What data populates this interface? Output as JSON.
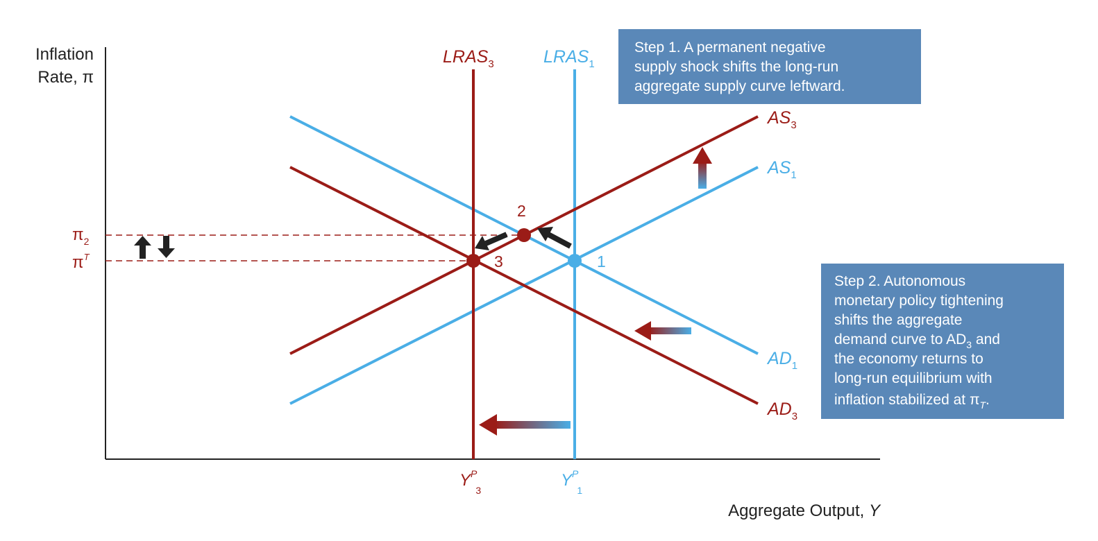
{
  "colors": {
    "blue": "#4aaee6",
    "red": "#9b1c17",
    "box": "#5a88b8",
    "axis": "#222222",
    "arrow": "#222222"
  },
  "axes": {
    "y_label_line1": "Inflation",
    "y_label_line2_text": "Rate, ",
    "y_label_line2_symbol": "π",
    "x_label_text": "Aggregate Output, ",
    "x_label_symbol": "Y"
  },
  "curves": {
    "lras3": {
      "base": "LRAS",
      "sub": "3"
    },
    "lras1": {
      "base": "LRAS",
      "sub": "1"
    },
    "as3": {
      "base": "AS",
      "sub": "3"
    },
    "as1": {
      "base": "AS",
      "sub": "1"
    },
    "ad1": {
      "base": "AD",
      "sub": "1"
    },
    "ad3": {
      "base": "AD",
      "sub": "3"
    }
  },
  "ticks": {
    "pi2": {
      "base": "π",
      "sub": "2"
    },
    "piT": {
      "base": "π",
      "sup": "T"
    },
    "yp3": {
      "base": "Y",
      "sup": "P",
      "sub": "3"
    },
    "yp1": {
      "base": "Y",
      "sup": "P",
      "sub": "1"
    }
  },
  "points": {
    "p1": "1",
    "p2": "2",
    "p3": "3"
  },
  "step1": {
    "lines": [
      "Step 1. A permanent negative",
      "supply shock shifts the long-run",
      "aggregate supply curve leftward."
    ]
  },
  "step2": {
    "lines": [
      "Step 2. Autonomous",
      "monetary policy tightening",
      "shifts the aggregate",
      "demand curve to AD",
      "the economy returns to",
      "long-run equilibrium with",
      "inflation stabilized at π"
    ],
    "line4_sub": "3",
    "line4_tail": " and",
    "line7_sub": "T",
    "line7_tail": "."
  }
}
